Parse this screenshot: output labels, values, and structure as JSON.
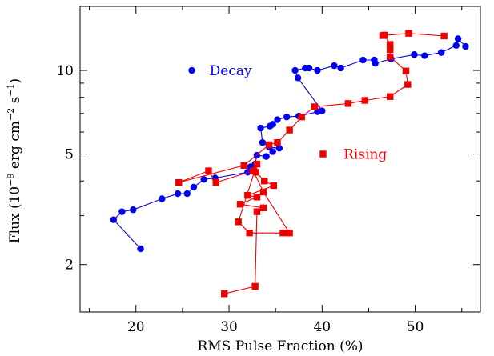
{
  "chart_data": {
    "type": "scatter",
    "xlabel": "RMS Pulse Fraction (%)",
    "ylabel_parts": [
      "Flux (10",
      "−9",
      " erg cm",
      "−2",
      " s",
      "−1",
      ")"
    ],
    "xlim": [
      14,
      57
    ],
    "ylim": [
      1.35,
      17
    ],
    "y_scale": "log",
    "x_ticks": [
      20,
      30,
      40,
      50
    ],
    "x_tick_labels": [
      "20",
      "30",
      "40",
      "50"
    ],
    "y_ticks": [
      2,
      5,
      10
    ],
    "y_tick_labels": [
      "2",
      "5",
      "10"
    ],
    "series": [
      {
        "name": "Decay",
        "color": "#0000ee",
        "marker": "circle",
        "legend_marker_at": [
          26,
          10
        ],
        "legend_label_at": [
          27.9,
          10
        ],
        "points": [
          [
            20.5,
            2.28
          ],
          [
            17.6,
            2.9
          ],
          [
            18.5,
            3.1
          ],
          [
            19.7,
            3.15
          ],
          [
            22.8,
            3.45
          ],
          [
            24.5,
            3.6
          ],
          [
            25.5,
            3.6
          ],
          [
            26.2,
            3.8
          ],
          [
            27.3,
            4.05
          ],
          [
            28.5,
            4.1
          ],
          [
            32.0,
            4.3
          ],
          [
            32.3,
            4.5
          ],
          [
            32.8,
            4.6
          ],
          [
            33.0,
            4.95
          ],
          [
            34.0,
            4.9
          ],
          [
            34.7,
            5.1
          ],
          [
            35.4,
            5.25
          ],
          [
            34.3,
            5.3
          ],
          [
            33.6,
            5.5
          ],
          [
            33.4,
            6.2
          ],
          [
            34.4,
            6.3
          ],
          [
            34.7,
            6.4
          ],
          [
            35.2,
            6.65
          ],
          [
            36.2,
            6.8
          ],
          [
            37.5,
            6.85
          ],
          [
            39.5,
            7.1
          ],
          [
            40.0,
            7.15
          ],
          [
            37.4,
            9.4
          ],
          [
            37.1,
            10.0
          ],
          [
            38.2,
            10.2
          ],
          [
            38.6,
            10.2
          ],
          [
            39.5,
            10.0
          ],
          [
            41.3,
            10.4
          ],
          [
            42.0,
            10.2
          ],
          [
            44.4,
            10.9
          ],
          [
            45.6,
            10.9
          ],
          [
            45.7,
            10.6
          ],
          [
            47.4,
            11.0
          ],
          [
            49.9,
            11.4
          ],
          [
            51.0,
            11.3
          ],
          [
            52.8,
            11.6
          ],
          [
            54.4,
            12.3
          ],
          [
            54.6,
            13.0
          ],
          [
            55.4,
            12.2
          ]
        ]
      },
      {
        "name": "Rising",
        "color": "#ee0000",
        "marker": "square",
        "legend_marker_at": [
          40.1,
          5
        ],
        "legend_label_at": [
          42.3,
          5
        ],
        "points": [
          [
            29.5,
            1.57
          ],
          [
            32.8,
            1.67
          ],
          [
            33.0,
            3.1
          ],
          [
            33.7,
            3.2
          ],
          [
            31.2,
            3.3
          ],
          [
            33.0,
            3.5
          ],
          [
            32.0,
            3.55
          ],
          [
            34.8,
            3.85
          ],
          [
            33.8,
            4.0
          ],
          [
            32.9,
            4.3
          ],
          [
            33.0,
            4.6
          ],
          [
            31.0,
            2.85
          ],
          [
            32.2,
            2.6
          ],
          [
            35.8,
            2.6
          ],
          [
            36.5,
            2.6
          ],
          [
            33.7,
            3.65
          ],
          [
            32.6,
            4.35
          ],
          [
            28.6,
            3.95
          ],
          [
            27.8,
            4.35
          ],
          [
            24.6,
            3.95
          ],
          [
            31.6,
            4.55
          ],
          [
            34.3,
            5.4
          ],
          [
            35.2,
            5.5
          ],
          [
            36.5,
            6.1
          ],
          [
            37.8,
            6.8
          ],
          [
            39.2,
            7.4
          ],
          [
            42.8,
            7.6
          ],
          [
            44.6,
            7.8
          ],
          [
            47.3,
            8.05
          ],
          [
            49.2,
            8.9
          ],
          [
            49.0,
            9.95
          ],
          [
            47.3,
            11.2
          ],
          [
            47.3,
            11.9
          ],
          [
            47.3,
            12.4
          ],
          [
            46.7,
            13.4
          ],
          [
            46.5,
            13.35
          ],
          [
            49.3,
            13.6
          ],
          [
            53.1,
            13.3
          ]
        ]
      }
    ]
  }
}
